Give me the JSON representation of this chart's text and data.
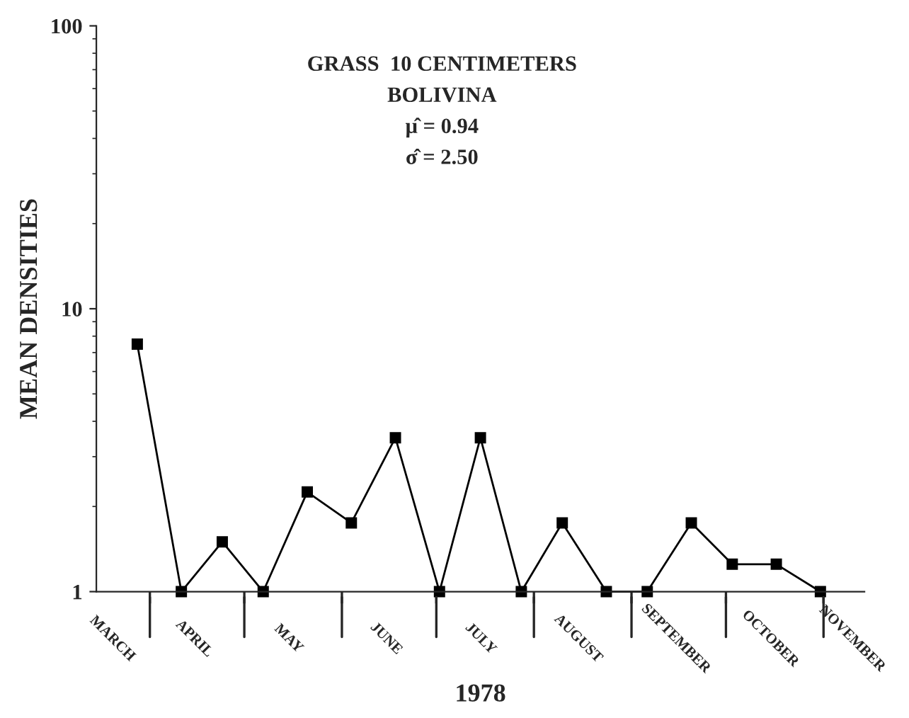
{
  "chart_data": {
    "type": "line",
    "title": "GRASS  10 CENTIMETERS",
    "subtitle": "BOLIVINA",
    "annotations": [
      "μ̂ = 0.94",
      "σ̂ = 2.50"
    ],
    "xlabel": "1978",
    "ylabel": "MEAN DENSITIES",
    "x": [
      "1978-03-28",
      "1978-04-11",
      "1978-04-24",
      "1978-05-07",
      "1978-05-21",
      "1978-06-04",
      "1978-06-18",
      "1978-07-02",
      "1978-07-15",
      "1978-07-28",
      "1978-08-10",
      "1978-08-24",
      "1978-09-06",
      "1978-09-20",
      "1978-10-03",
      "1978-10-17",
      "1978-10-31"
    ],
    "series": [
      {
        "color": "#000000",
        "values": [
          7.5,
          1,
          1.5,
          1,
          2.25,
          1.75,
          3.5,
          1,
          3.5,
          1,
          1.75,
          1,
          1,
          1.75,
          1.25,
          1.25,
          1
        ]
      }
    ],
    "xlim": [
      "1978-03-15",
      "1978-11-14"
    ],
    "xticks": [
      {
        "value": "1978-03-20",
        "label": "MARCH"
      },
      {
        "value": "1978-04-01",
        "label": null
      },
      {
        "value": "1978-04-15",
        "label": "APRIL"
      },
      {
        "value": "1978-05-01",
        "label": null
      },
      {
        "value": "1978-05-15",
        "label": "MAY"
      },
      {
        "value": "1978-06-01",
        "label": null
      },
      {
        "value": "1978-06-15",
        "label": "JUNE"
      },
      {
        "value": "1978-07-01",
        "label": null
      },
      {
        "value": "1978-07-15",
        "label": "JULY"
      },
      {
        "value": "1978-08-01",
        "label": null
      },
      {
        "value": "1978-08-15",
        "label": "AUGUST"
      },
      {
        "value": "1978-09-01",
        "label": null
      },
      {
        "value": "1978-09-15",
        "label": "SEPTEMBER"
      },
      {
        "value": "1978-10-01",
        "label": null
      },
      {
        "value": "1978-10-15",
        "label": "OCTOBER"
      },
      {
        "value": "1978-11-01",
        "label": null
      },
      {
        "value": "1978-11-10",
        "label": "NOVEMBER"
      }
    ],
    "ylim": [
      1,
      100
    ],
    "yticks": [
      1,
      10,
      100
    ],
    "log": "y",
    "grid": false,
    "legend": false,
    "marker": "square",
    "line_style": "solid"
  }
}
